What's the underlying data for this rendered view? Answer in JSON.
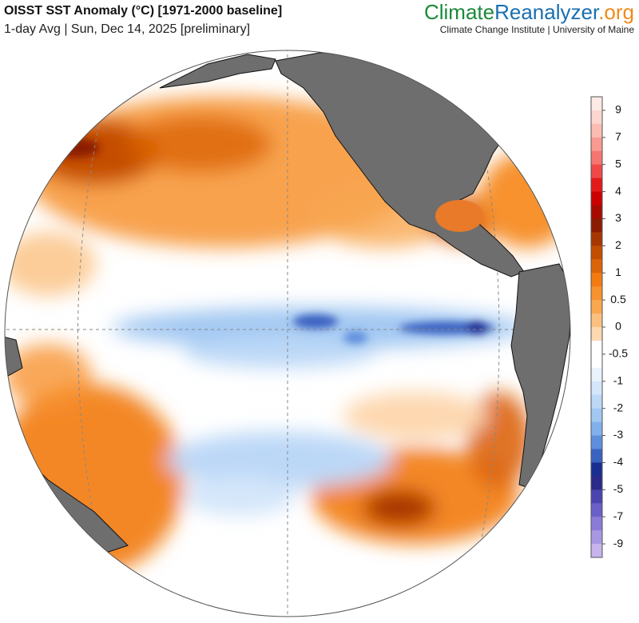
{
  "header": {
    "title": "OISST SST Anomaly (°C) [1971-2000 baseline]",
    "subtitle": "1-day Avg | Sun, Dec 14, 2025 [preliminary]"
  },
  "brand": {
    "name_parts": [
      "Climate",
      "Reanalyzer",
      ".org"
    ],
    "name_colors": [
      "#1a8a3a",
      "#1a6fb0",
      "#f08a1c"
    ],
    "affiliation": "Climate Change Institute | University of Maine"
  },
  "colorbar": {
    "ticks": [
      9,
      7,
      5,
      4,
      3,
      2,
      1,
      0.5,
      0,
      -0.5,
      -1,
      -2,
      -3,
      -4,
      -5,
      -7,
      -9
    ],
    "colors": [
      "#fde9e6",
      "#fcd6cf",
      "#fbbcb2",
      "#f99a90",
      "#f57670",
      "#f04848",
      "#e41a1a",
      "#cc0000",
      "#a80a00",
      "#8c1c00",
      "#a83600",
      "#c44e00",
      "#dc6408",
      "#f27a10",
      "#f7922e",
      "#f9a850",
      "#fbc080",
      "#fdd8b0",
      "#ffffff",
      "#ffffff",
      "#eaf2fc",
      "#d4e6fa",
      "#bcd8f7",
      "#a2c8f2",
      "#82b0ea",
      "#5f8edc",
      "#3a62c0",
      "#1a2e92",
      "#2a2a88",
      "#4a44b0",
      "#6a60c8",
      "#8a7cd6",
      "#a898e2",
      "#c8b4ec"
    ]
  }
}
